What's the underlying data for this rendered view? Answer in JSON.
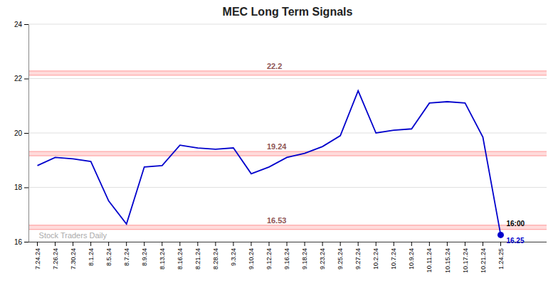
{
  "chart_data": {
    "type": "line",
    "title": "MEC Long Term Signals",
    "categories": [
      "7.24.24",
      "7.26.24",
      "7.30.24",
      "8.1.24",
      "8.5.24",
      "8.7.24",
      "8.9.24",
      "8.13.24",
      "8.16.24",
      "8.21.24",
      "8.28.24",
      "9.3.24",
      "9.10.24",
      "9.12.24",
      "9.16.24",
      "9.18.24",
      "9.23.24",
      "9.25.24",
      "9.27.24",
      "10.2.24",
      "10.7.24",
      "10.9.24",
      "10.11.24",
      "10.15.24",
      "10.17.24",
      "10.21.24",
      "1.24.25"
    ],
    "values": [
      18.8,
      19.1,
      19.05,
      18.95,
      17.5,
      16.65,
      18.75,
      18.8,
      19.55,
      19.45,
      19.4,
      19.45,
      18.5,
      18.75,
      19.1,
      19.25,
      19.5,
      19.9,
      21.55,
      20.0,
      20.1,
      20.15,
      21.1,
      21.15,
      21.1,
      19.85,
      16.25
    ],
    "color": "#0000cc",
    "ylim": [
      16,
      24
    ],
    "yticks": [
      16,
      18,
      20,
      22,
      24
    ],
    "grid": true,
    "hlines": [
      {
        "value": 22.2,
        "label": "22.2",
        "color": "#ff9999"
      },
      {
        "value": 19.24,
        "label": "19.24",
        "color": "#ff9999"
      },
      {
        "value": 16.53,
        "label": "16.53",
        "color": "#ff9999"
      }
    ],
    "annotations": [
      {
        "text": "16:00",
        "x": "1.24.25"
      },
      {
        "text": "16.25",
        "x": "1.24.25",
        "y": 16.25
      },
      {
        "text": "Stock Traders Daily"
      }
    ]
  }
}
